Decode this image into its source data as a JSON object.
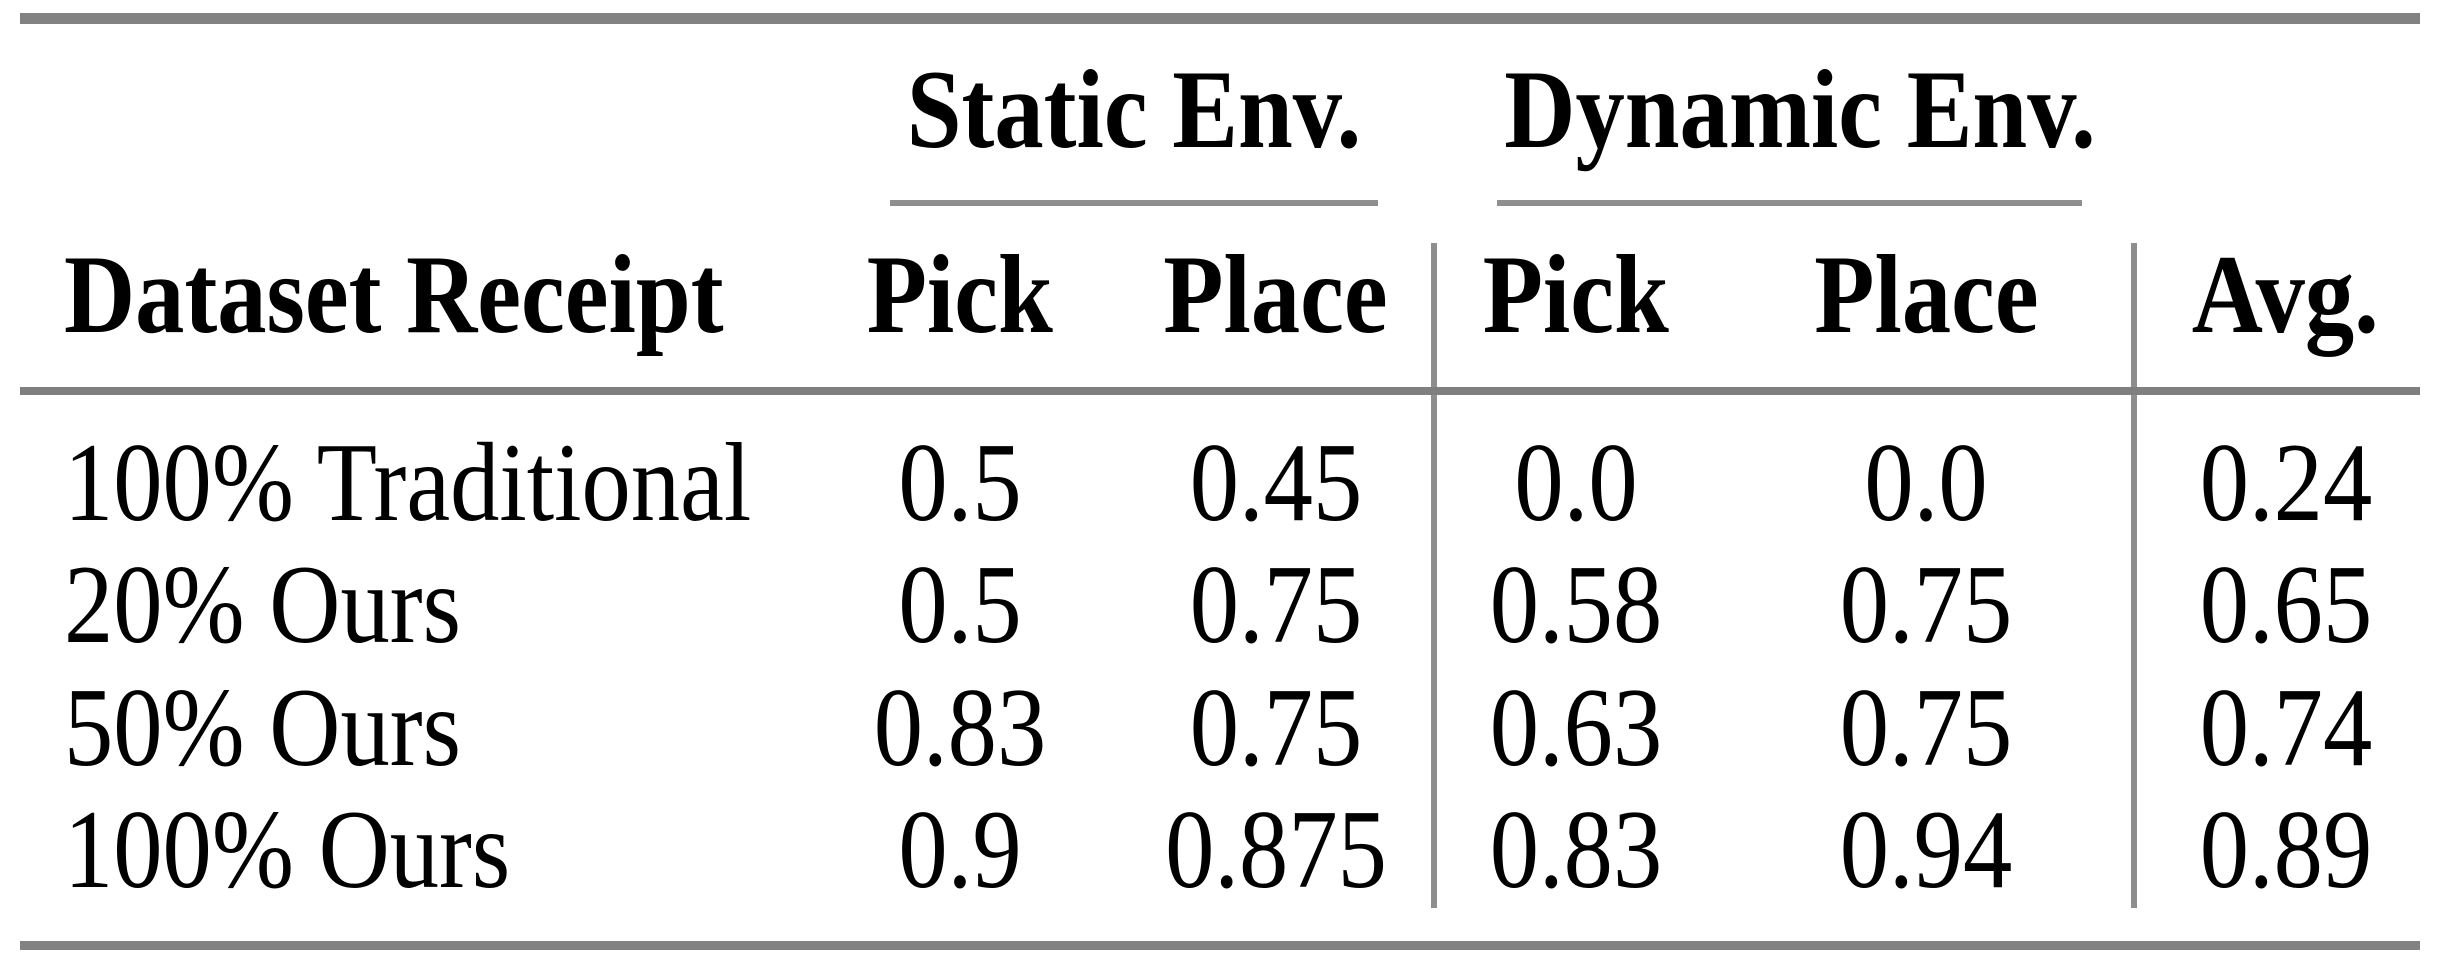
{
  "table": {
    "group_headers": [
      {
        "label": "Static Env.",
        "spans": [
          "Pick",
          "Place"
        ]
      },
      {
        "label": "Dynamic Env.",
        "spans": [
          "Pick",
          "Place"
        ]
      }
    ],
    "column_headers": [
      "Dataset Receipt",
      "Pick",
      "Place",
      "Pick",
      "Place",
      "Avg."
    ],
    "rows": [
      {
        "label": "100% Traditional",
        "values": [
          "0.5",
          "0.45",
          "0.0",
          "0.0",
          "0.24"
        ]
      },
      {
        "label": "20% Ours",
        "values": [
          "0.5",
          "0.75",
          "0.58",
          "0.75",
          "0.65"
        ]
      },
      {
        "label": "50% Ours",
        "values": [
          "0.83",
          "0.75",
          "0.63",
          "0.75",
          "0.74"
        ]
      },
      {
        "label": "100% Ours",
        "values": [
          "0.9",
          "0.875",
          "0.83",
          "0.94",
          "0.89"
        ]
      }
    ],
    "colors": {
      "background": "#ffffff",
      "text": "#000000",
      "heavy_rule": "#828282",
      "light_rule": "#8f8f8f"
    }
  }
}
